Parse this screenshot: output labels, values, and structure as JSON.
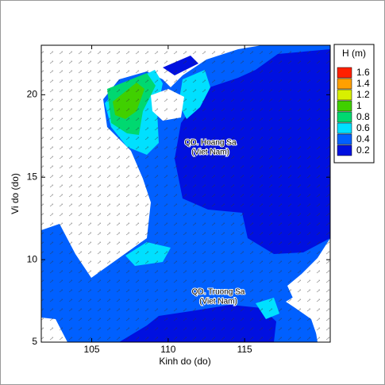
{
  "chart_data": {
    "type": "map",
    "x_label": "Kinh do (do)",
    "y_label": "Vi do (do)",
    "xlim": [
      101.7,
      120.6
    ],
    "ylim": [
      5,
      23
    ],
    "xticks": [
      105,
      110,
      115
    ],
    "yticks": [
      5,
      10,
      15,
      20
    ],
    "legend": {
      "title": "H  (m)",
      "levels": [
        1.6,
        1.4,
        1.2,
        1,
        0.8,
        0.6,
        0.4,
        0.2
      ],
      "colors": [
        "#ff2000",
        "#ffa000",
        "#d8f000",
        "#40d000",
        "#00d870",
        "#00e0ff",
        "#0060ff",
        "#0010e0"
      ]
    },
    "annotations": [
      {
        "lines": [
          "QD. Hoang Sa",
          "(Viet Nam)"
        ]
      },
      {
        "lines": [
          "QD. Truong Sa",
          "(Viet Nam)"
        ]
      }
    ]
  }
}
